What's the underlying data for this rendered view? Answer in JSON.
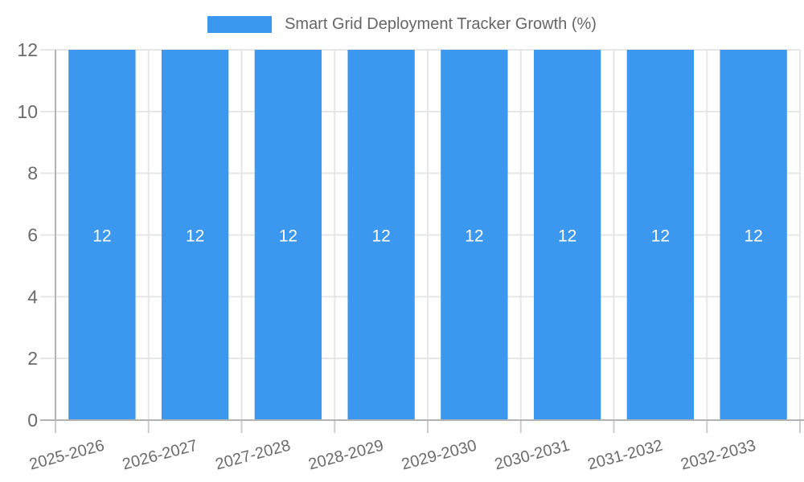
{
  "chart_data": {
    "type": "bar",
    "title": "Smart Grid Deployment Tracker Growth (%)",
    "categories": [
      "2025-2026",
      "2026-2027",
      "2027-2028",
      "2028-2029",
      "2029-2030",
      "2030-2031",
      "2031-2032",
      "2032-2033"
    ],
    "values": [
      12,
      12,
      12,
      12,
      12,
      12,
      12,
      12
    ],
    "xlabel": "",
    "ylabel": "",
    "ylim": [
      0,
      12
    ],
    "yticks": [
      0,
      2,
      4,
      6,
      8,
      10,
      12
    ],
    "grid": true,
    "legend_position": "top-center",
    "x_tick_rotation_deg": -15,
    "bar_value_labels_visible": true,
    "colors": {
      "bar": "#3B98EE",
      "grid": "#E6E6E6",
      "axis": "#B3B3B3",
      "tick_mark": "#CCCCCC",
      "tick_text": "#6B6B6B",
      "legend_text": "#666666",
      "value_label_text": "#FFFFFF",
      "background": "#FFFFFF"
    }
  }
}
